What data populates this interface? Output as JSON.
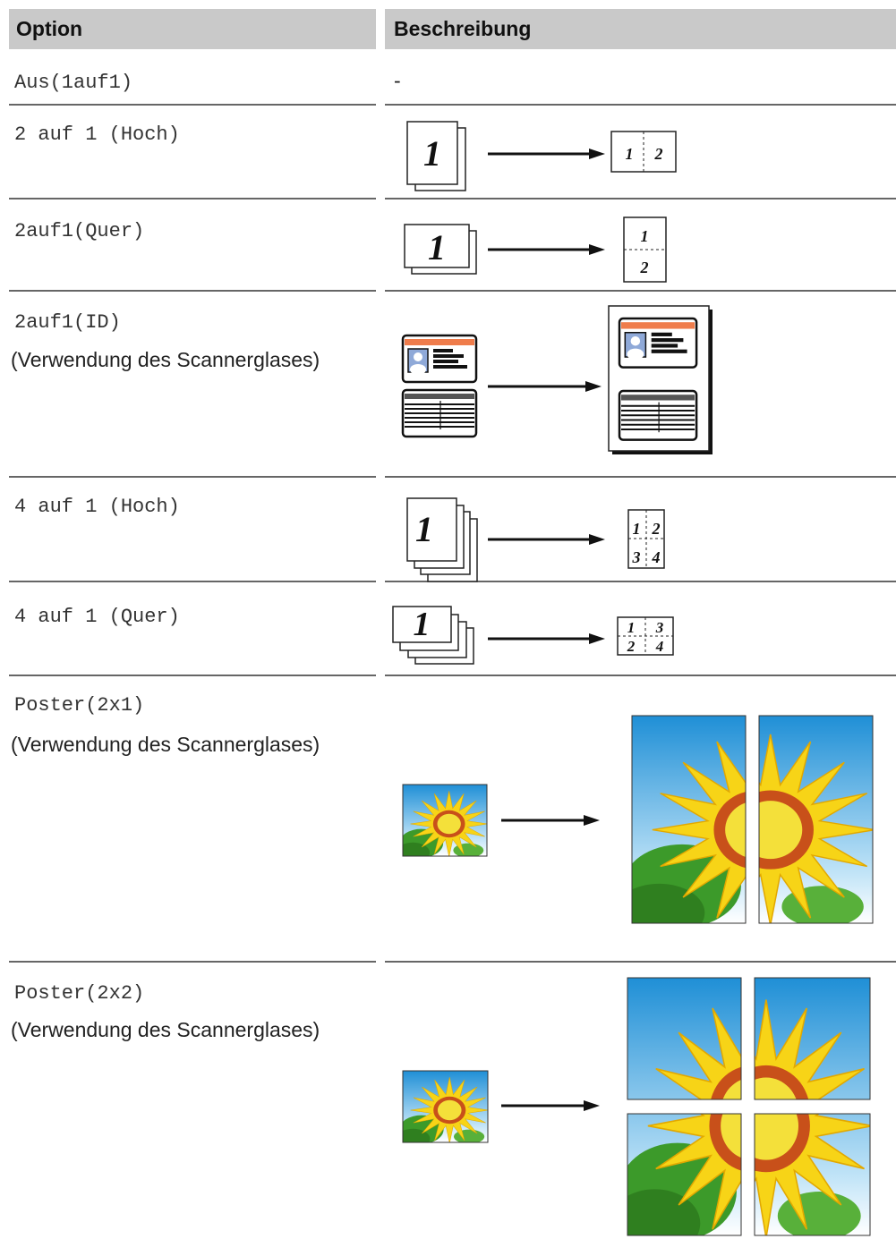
{
  "table": {
    "header": [
      "Option",
      "Beschreibung"
    ],
    "rows": [
      {
        "option": "Aus(1auf1)",
        "description": "-"
      },
      {
        "option": "2 auf 1 (Hoch)",
        "figure_labels": [
          "1",
          "1",
          "2"
        ]
      },
      {
        "option": "2auf1(Quer)",
        "figure_labels": [
          "1",
          "1",
          "2"
        ]
      },
      {
        "option": "2auf1(ID)",
        "note": "(Verwendung des Scannerglases)"
      },
      {
        "option": "4 auf 1 (Hoch)",
        "figure_labels": [
          "1",
          "1",
          "2",
          "3",
          "4"
        ]
      },
      {
        "option": "4 auf 1 (Quer)",
        "figure_labels": [
          "1",
          "1",
          "3",
          "2",
          "4"
        ]
      },
      {
        "option": "Poster(2x1)",
        "note": "(Verwendung des Scannerglases)"
      },
      {
        "option": "Poster(2x2)",
        "note": "(Verwendung des Scannerglases)"
      }
    ]
  }
}
